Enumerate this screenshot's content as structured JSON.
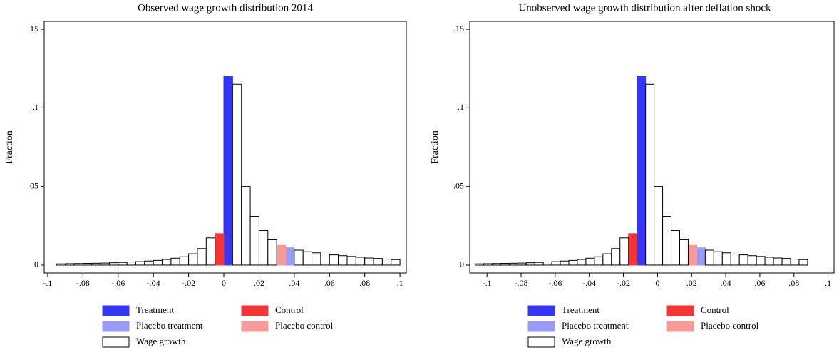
{
  "chart_data": [
    {
      "type": "histogram",
      "title": "Observed wage growth distribution 2014",
      "ylabel": "Fraction",
      "bins": [
        -0.095,
        -0.09,
        -0.085,
        -0.08,
        -0.075,
        -0.07,
        -0.065,
        -0.06,
        -0.055,
        -0.05,
        -0.045,
        -0.04,
        -0.035,
        -0.03,
        -0.025,
        -0.02,
        -0.015,
        -0.01,
        -0.005,
        0,
        0.005,
        0.01,
        0.015,
        0.02,
        0.025,
        0.03,
        0.035,
        0.04,
        0.045,
        0.05,
        0.055,
        0.06,
        0.065,
        0.07,
        0.075,
        0.08,
        0.085,
        0.09,
        0.095,
        0.1
      ],
      "series": [
        {
          "name": "Treatment",
          "color": "#3535f5",
          "values": [
            null,
            null,
            null,
            null,
            null,
            null,
            null,
            null,
            null,
            null,
            null,
            null,
            null,
            null,
            null,
            null,
            null,
            null,
            null,
            0.12,
            null,
            null,
            null,
            null,
            null,
            null,
            null,
            null,
            null,
            null,
            null,
            null,
            null,
            null,
            null,
            null,
            null,
            null,
            null
          ]
        },
        {
          "name": "Control",
          "color": "#f53535",
          "values": [
            null,
            null,
            null,
            null,
            null,
            null,
            null,
            null,
            null,
            null,
            null,
            null,
            null,
            null,
            null,
            null,
            null,
            null,
            0.02,
            null,
            null,
            null,
            null,
            null,
            null,
            null,
            null,
            null,
            null,
            null,
            null,
            null,
            null,
            null,
            null,
            null,
            null,
            null,
            null
          ]
        },
        {
          "name": "Placebo treatment",
          "color": "#9a9af7",
          "values": [
            null,
            null,
            null,
            null,
            null,
            null,
            null,
            null,
            null,
            null,
            null,
            null,
            null,
            null,
            null,
            null,
            null,
            null,
            null,
            null,
            null,
            null,
            null,
            null,
            null,
            null,
            0.011,
            null,
            null,
            null,
            null,
            null,
            null,
            null,
            null,
            null,
            null,
            null,
            null
          ]
        },
        {
          "name": "Placebo control",
          "color": "#f79a9a",
          "values": [
            null,
            null,
            null,
            null,
            null,
            null,
            null,
            null,
            null,
            null,
            null,
            null,
            null,
            null,
            null,
            null,
            null,
            null,
            null,
            null,
            null,
            null,
            null,
            null,
            null,
            0.013,
            null,
            null,
            null,
            null,
            null,
            null,
            null,
            null,
            null,
            null,
            null,
            null,
            null
          ]
        },
        {
          "name": "Wage growth",
          "color": "#ffffff",
          "values": [
            0.0008,
            0.0009,
            0.001,
            0.0011,
            0.0012,
            0.0013,
            0.0015,
            0.0017,
            0.002,
            0.0022,
            0.0026,
            0.003,
            0.0036,
            0.0044,
            0.0053,
            0.0072,
            0.0105,
            0.0173,
            null,
            null,
            0.115,
            0.05,
            0.031,
            0.022,
            0.0165,
            null,
            null,
            0.0095,
            0.0085,
            0.0078,
            0.007,
            0.0065,
            0.006,
            0.0055,
            0.005,
            0.0045,
            0.0042,
            0.0038,
            0.0035
          ]
        }
      ],
      "xlim": [
        -0.102,
        0.1036
      ],
      "ylim": [
        -0.005,
        0.155
      ],
      "xticks": [
        {
          "value": -0.1,
          "label": "-.1"
        },
        {
          "value": -0.08,
          "label": "-.08"
        },
        {
          "value": -0.06,
          "label": "-.06"
        },
        {
          "value": -0.04,
          "label": "-.04"
        },
        {
          "value": -0.02,
          "label": "-.02"
        },
        0,
        {
          "value": 0.02,
          "label": ".02"
        },
        {
          "value": 0.04,
          "label": ".04"
        },
        {
          "value": 0.06,
          "label": ".06"
        },
        {
          "value": 0.08,
          "label": ".08"
        },
        {
          "value": 0.1,
          "label": ".1"
        }
      ],
      "yticks": [
        0,
        {
          "value": 0.05,
          "label": ".05"
        },
        {
          "value": 0.1,
          "label": ".1"
        },
        {
          "value": 0.15,
          "label": ".15"
        }
      ]
    },
    {
      "type": "histogram",
      "title": "Unobserved wage growth distribution after deflation shock",
      "ylabel": "Fraction",
      "bins": [
        -0.107,
        -0.102,
        -0.097,
        -0.092,
        -0.087,
        -0.082,
        -0.077,
        -0.072,
        -0.067,
        -0.062,
        -0.057,
        -0.052,
        -0.047,
        -0.042,
        -0.037,
        -0.032,
        -0.027,
        -0.022,
        -0.017,
        -0.012,
        -0.007,
        -0.002,
        0.003,
        0.008,
        0.013,
        0.018,
        0.023,
        0.028,
        0.033,
        0.038,
        0.043,
        0.048,
        0.053,
        0.058,
        0.063,
        0.068,
        0.073,
        0.078,
        0.083,
        0.088
      ],
      "series": [
        {
          "name": "Treatment",
          "color": "#3535f5",
          "values": [
            null,
            null,
            null,
            null,
            null,
            null,
            null,
            null,
            null,
            null,
            null,
            null,
            null,
            null,
            null,
            null,
            null,
            null,
            null,
            0.12,
            null,
            null,
            null,
            null,
            null,
            null,
            null,
            null,
            null,
            null,
            null,
            null,
            null,
            null,
            null,
            null,
            null,
            null,
            null
          ]
        },
        {
          "name": "Control",
          "color": "#f53535",
          "values": [
            null,
            null,
            null,
            null,
            null,
            null,
            null,
            null,
            null,
            null,
            null,
            null,
            null,
            null,
            null,
            null,
            null,
            null,
            0.02,
            null,
            null,
            null,
            null,
            null,
            null,
            null,
            null,
            null,
            null,
            null,
            null,
            null,
            null,
            null,
            null,
            null,
            null,
            null,
            null
          ]
        },
        {
          "name": "Placebo treatment",
          "color": "#9a9af7",
          "values": [
            null,
            null,
            null,
            null,
            null,
            null,
            null,
            null,
            null,
            null,
            null,
            null,
            null,
            null,
            null,
            null,
            null,
            null,
            null,
            null,
            null,
            null,
            null,
            null,
            null,
            null,
            0.011,
            null,
            null,
            null,
            null,
            null,
            null,
            null,
            null,
            null,
            null,
            null,
            null
          ]
        },
        {
          "name": "Placebo control",
          "color": "#f79a9a",
          "values": [
            null,
            null,
            null,
            null,
            null,
            null,
            null,
            null,
            null,
            null,
            null,
            null,
            null,
            null,
            null,
            null,
            null,
            null,
            null,
            null,
            null,
            null,
            null,
            null,
            null,
            0.013,
            null,
            null,
            null,
            null,
            null,
            null,
            null,
            null,
            null,
            null,
            null,
            null,
            null
          ]
        },
        {
          "name": "Wage growth",
          "color": "#ffffff",
          "values": [
            0.0008,
            0.0009,
            0.001,
            0.0011,
            0.0012,
            0.0013,
            0.0015,
            0.0017,
            0.002,
            0.0022,
            0.0026,
            0.003,
            0.0036,
            0.0044,
            0.0053,
            0.0072,
            0.0105,
            0.0173,
            null,
            null,
            0.115,
            0.05,
            0.031,
            0.022,
            0.0165,
            null,
            null,
            0.0095,
            0.0085,
            0.0078,
            0.007,
            0.0065,
            0.006,
            0.0055,
            0.005,
            0.0045,
            0.0042,
            0.0038,
            0.0035
          ]
        }
      ],
      "xlim": [
        -0.1101,
        0.1035
      ],
      "ylim": [
        -0.005,
        0.155
      ],
      "xticks": [
        {
          "value": -0.1,
          "label": "-.1"
        },
        {
          "value": -0.08,
          "label": "-.08"
        },
        {
          "value": -0.06,
          "label": "-.06"
        },
        {
          "value": -0.04,
          "label": "-.04"
        },
        {
          "value": -0.02,
          "label": "-.02"
        },
        0,
        {
          "value": 0.02,
          "label": ".02"
        },
        {
          "value": 0.04,
          "label": ".04"
        },
        {
          "value": 0.06,
          "label": ".06"
        },
        {
          "value": 0.08,
          "label": ".08"
        },
        {
          "value": 0.1,
          "label": ".1"
        }
      ],
      "yticks": [
        0,
        {
          "value": 0.05,
          "label": ".05"
        },
        {
          "value": 0.1,
          "label": ".1"
        },
        {
          "value": 0.15,
          "label": ".15"
        }
      ]
    }
  ]
}
